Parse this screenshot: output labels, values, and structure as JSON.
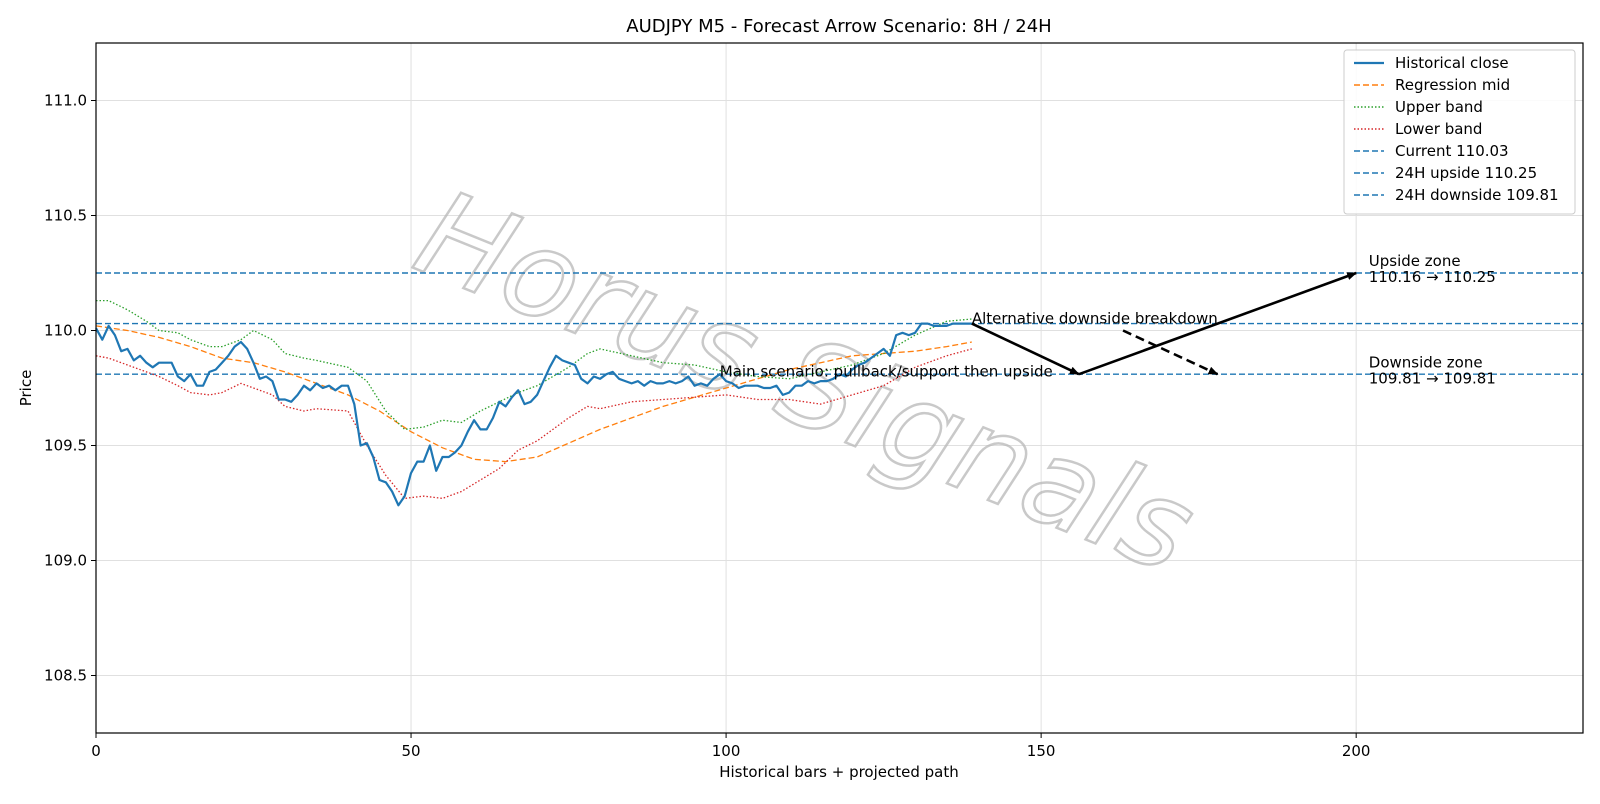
{
  "chart_data": {
    "type": "line",
    "title": "AUDJPY M5 - Forecast Arrow Scenario: 8H / 24H",
    "xlabel": "Historical bars + projected path",
    "ylabel": "Price",
    "xlim": [
      0,
      236
    ],
    "ylim": [
      108.25,
      111.25
    ],
    "xticks": [
      0,
      50,
      100,
      150,
      200
    ],
    "yticks": [
      108.5,
      109.0,
      109.5,
      110.0,
      110.5,
      111.0
    ],
    "grid": true,
    "legend_position": "top-right",
    "series": [
      {
        "name": "Historical close",
        "color": "#1f77b4",
        "style": "solid",
        "x": [
          0,
          1,
          2,
          3,
          4,
          5,
          6,
          7,
          8,
          9,
          10,
          11,
          12,
          13,
          14,
          15,
          16,
          17,
          18,
          19,
          20,
          21,
          22,
          23,
          24,
          25,
          26,
          27,
          28,
          29,
          30,
          31,
          32,
          33,
          34,
          35,
          36,
          37,
          38,
          39,
          40,
          41,
          42,
          43,
          44,
          45,
          46,
          47,
          48,
          49,
          50,
          51,
          52,
          53,
          54,
          55,
          56,
          57,
          58,
          59,
          60,
          61,
          62,
          63,
          64,
          65,
          66,
          67,
          68,
          69,
          70,
          71,
          72,
          73,
          74,
          75,
          76,
          77,
          78,
          79,
          80,
          81,
          82,
          83,
          84,
          85,
          86,
          87,
          88,
          89,
          90,
          91,
          92,
          93,
          94,
          95,
          96,
          97,
          98,
          99,
          100,
          101,
          102,
          103,
          104,
          105,
          106,
          107,
          108,
          109,
          110,
          111,
          112,
          113,
          114,
          115,
          116,
          117,
          118,
          119,
          120,
          121,
          122,
          123,
          124,
          125,
          126,
          127,
          128,
          129,
          130,
          131,
          132,
          133,
          134,
          135,
          136,
          137,
          138,
          139
        ],
        "values": [
          110.01,
          109.96,
          110.02,
          109.98,
          109.91,
          109.92,
          109.87,
          109.89,
          109.86,
          109.84,
          109.86,
          109.86,
          109.86,
          109.8,
          109.78,
          109.81,
          109.76,
          109.76,
          109.82,
          109.83,
          109.86,
          109.89,
          109.93,
          109.95,
          109.92,
          109.86,
          109.79,
          109.8,
          109.78,
          109.7,
          109.7,
          109.69,
          109.72,
          109.76,
          109.74,
          109.77,
          109.75,
          109.76,
          109.74,
          109.76,
          109.76,
          109.68,
          109.5,
          109.51,
          109.45,
          109.35,
          109.34,
          109.3,
          109.24,
          109.28,
          109.38,
          109.43,
          109.43,
          109.5,
          109.39,
          109.45,
          109.45,
          109.47,
          109.5,
          109.56,
          109.61,
          109.57,
          109.57,
          109.62,
          109.69,
          109.67,
          109.71,
          109.74,
          109.68,
          109.69,
          109.72,
          109.78,
          109.84,
          109.89,
          109.87,
          109.86,
          109.85,
          109.79,
          109.77,
          109.8,
          109.79,
          109.81,
          109.82,
          109.79,
          109.78,
          109.77,
          109.78,
          109.76,
          109.78,
          109.77,
          109.77,
          109.78,
          109.77,
          109.78,
          109.8,
          109.76,
          109.77,
          109.76,
          109.79,
          109.81,
          109.78,
          109.77,
          109.75,
          109.76,
          109.76,
          109.76,
          109.75,
          109.75,
          109.76,
          109.72,
          109.73,
          109.76,
          109.76,
          109.78,
          109.77,
          109.78,
          109.78,
          109.79,
          109.81,
          109.8,
          109.83,
          109.85,
          109.86,
          109.88,
          109.9,
          109.92,
          109.89,
          109.98,
          109.99,
          109.98,
          109.99,
          110.03,
          110.03,
          110.02,
          110.02,
          110.02,
          110.03,
          110.03,
          110.03,
          110.03
        ]
      },
      {
        "name": "Regression mid",
        "color": "#ff7f0e",
        "style": "dashed",
        "x": [
          0,
          5,
          10,
          15,
          20,
          25,
          30,
          35,
          40,
          45,
          50,
          55,
          60,
          65,
          70,
          75,
          80,
          85,
          90,
          95,
          100,
          105,
          110,
          115,
          120,
          125,
          130,
          135,
          139
        ],
        "values": [
          110.02,
          110.0,
          109.97,
          109.93,
          109.88,
          109.86,
          109.82,
          109.77,
          109.72,
          109.65,
          109.56,
          109.49,
          109.44,
          109.43,
          109.45,
          109.51,
          109.57,
          109.62,
          109.67,
          109.71,
          109.75,
          109.79,
          109.83,
          109.86,
          109.89,
          109.9,
          109.91,
          109.93,
          109.95
        ]
      },
      {
        "name": "Upper band",
        "color": "#2ca02c",
        "style": "dotted",
        "x": [
          0,
          2,
          5,
          8,
          10,
          13,
          15,
          18,
          20,
          23,
          25,
          28,
          30,
          33,
          35,
          40,
          43,
          46,
          49,
          52,
          55,
          58,
          61,
          64,
          67,
          70,
          75,
          78,
          80,
          85,
          90,
          95,
          100,
          105,
          110,
          115,
          120,
          125,
          130,
          135,
          139
        ],
        "values": [
          110.13,
          110.13,
          110.09,
          110.04,
          110.0,
          109.99,
          109.96,
          109.93,
          109.93,
          109.96,
          110.0,
          109.96,
          109.9,
          109.88,
          109.87,
          109.84,
          109.78,
          109.65,
          109.57,
          109.58,
          109.61,
          109.6,
          109.65,
          109.69,
          109.73,
          109.76,
          109.84,
          109.9,
          109.92,
          109.89,
          109.86,
          109.85,
          109.82,
          109.8,
          109.79,
          109.82,
          109.85,
          109.9,
          109.98,
          110.04,
          110.05
        ]
      },
      {
        "name": "Lower band",
        "color": "#d62728",
        "style": "dotted",
        "x": [
          0,
          2,
          5,
          8,
          10,
          13,
          15,
          18,
          20,
          23,
          25,
          28,
          30,
          33,
          35,
          40,
          43,
          46,
          49,
          52,
          55,
          58,
          61,
          64,
          67,
          70,
          75,
          78,
          80,
          85,
          90,
          95,
          100,
          105,
          110,
          115,
          120,
          125,
          130,
          135,
          139
        ],
        "values": [
          109.89,
          109.88,
          109.85,
          109.82,
          109.8,
          109.76,
          109.73,
          109.72,
          109.73,
          109.77,
          109.75,
          109.72,
          109.67,
          109.65,
          109.66,
          109.65,
          109.5,
          109.37,
          109.27,
          109.28,
          109.27,
          109.3,
          109.35,
          109.4,
          109.48,
          109.52,
          109.62,
          109.67,
          109.66,
          109.69,
          109.7,
          109.71,
          109.72,
          109.7,
          109.7,
          109.68,
          109.72,
          109.76,
          109.84,
          109.89,
          109.92
        ]
      }
    ],
    "hlines": [
      {
        "name": "Current 110.03",
        "value": 110.03,
        "color": "#1f77b4",
        "style": "dashed"
      },
      {
        "name": "24H upside 110.25",
        "value": 110.25,
        "color": "#1f77b4",
        "style": "dashed"
      },
      {
        "name": "24H downside 109.81",
        "value": 109.81,
        "color": "#1f77b4",
        "style": "dashed"
      }
    ],
    "arrows": [
      {
        "from": [
          139,
          110.03
        ],
        "to": [
          156,
          109.81
        ],
        "style": "solid"
      },
      {
        "from": [
          156,
          109.81
        ],
        "to": [
          200,
          110.25
        ],
        "style": "solid"
      },
      {
        "from": [
          163,
          110.0
        ],
        "to": [
          178,
          109.81
        ],
        "style": "dashed"
      }
    ],
    "annotations": [
      {
        "text": "Main scenario: pullback/support then upside",
        "x": 99,
        "y": 109.8
      },
      {
        "text": "Alternative downside breakdown",
        "x": 139,
        "y": 110.03
      },
      {
        "text": "Upside zone",
        "x": 202,
        "y": 110.28
      },
      {
        "text": "110.16 → 110.25",
        "x": 202,
        "y": 110.21
      },
      {
        "text": "Downside zone",
        "x": 202,
        "y": 109.84
      },
      {
        "text": "109.81 → 109.81",
        "x": 202,
        "y": 109.77
      }
    ],
    "watermark": "Horus Signals"
  }
}
